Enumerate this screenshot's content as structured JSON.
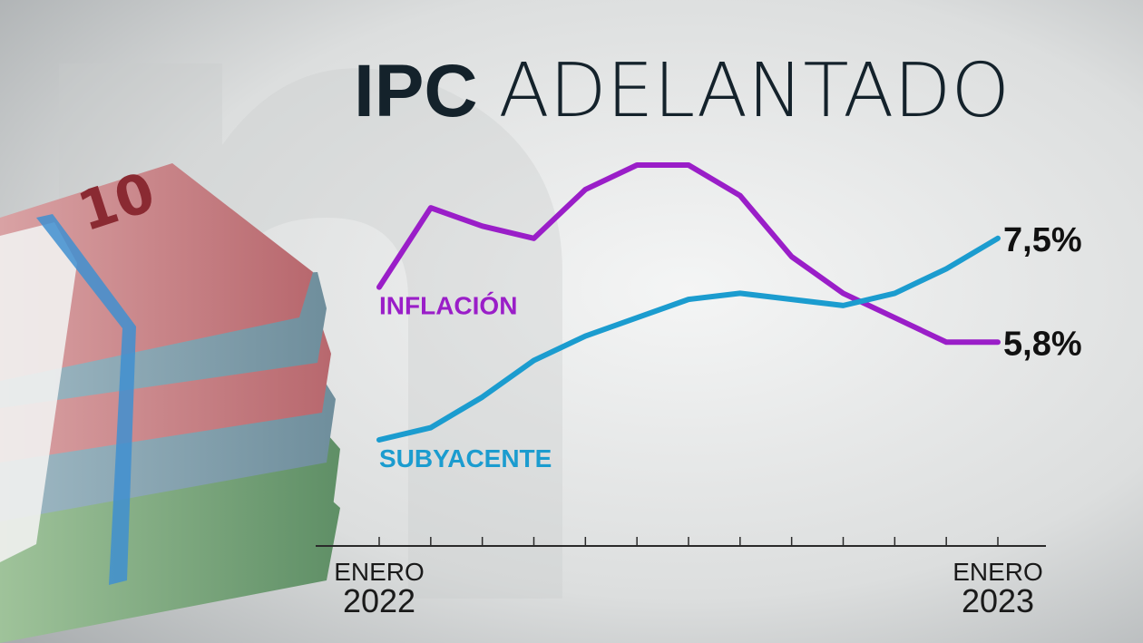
{
  "chart_data": {
    "type": "line",
    "title": "IPC ADELANTADO",
    "categories": [
      "ENERO 2022",
      null,
      null,
      null,
      null,
      null,
      null,
      null,
      null,
      null,
      null,
      null,
      "ENERO 2023"
    ],
    "series": [
      {
        "name": "INFLACIÓN",
        "color": "#9a1ec8",
        "values": [
          6.7,
          8.0,
          7.7,
          7.5,
          8.3,
          8.7,
          8.7,
          8.2,
          7.2,
          6.6,
          6.2,
          5.8,
          5.8
        ],
        "value_labels": [
          null,
          null,
          null,
          null,
          null,
          null,
          null,
          null,
          null,
          null,
          null,
          null,
          "5,8%"
        ]
      },
      {
        "name": "SUBYACENTE",
        "color": "#1b9ccf",
        "values": [
          4.2,
          4.4,
          4.9,
          5.5,
          5.9,
          6.2,
          6.5,
          6.6,
          6.5,
          6.4,
          6.6,
          7.0,
          7.5
        ],
        "value_labels": [
          null,
          null,
          null,
          null,
          null,
          null,
          null,
          null,
          null,
          null,
          null,
          null,
          "7,5%"
        ]
      }
    ]
  }
}
